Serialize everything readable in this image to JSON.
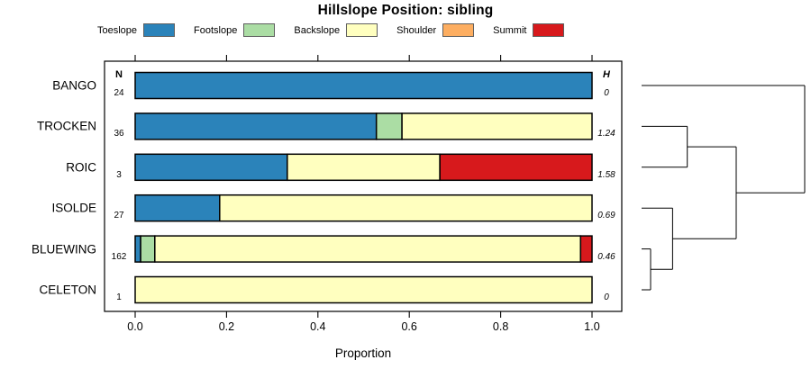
{
  "title": "Hillslope Position: sibling",
  "x_axis": {
    "label": "Proportion",
    "tick_labels": [
      "0.0",
      "0.2",
      "0.4",
      "0.6",
      "0.8",
      "1.0"
    ],
    "tick_values": [
      0,
      0.2,
      0.4,
      0.6,
      0.8,
      1.0
    ],
    "range": [
      0,
      1
    ]
  },
  "columns": {
    "n_header": "N",
    "h_header": "H"
  },
  "legend": [
    {
      "label": "Toeslope",
      "color": "#2B83BA"
    },
    {
      "label": "Footslope",
      "color": "#ABDDA4"
    },
    {
      "label": "Backslope",
      "color": "#FFFFBF"
    },
    {
      "label": "Shoulder",
      "color": "#FDAE61"
    },
    {
      "label": "Summit",
      "color": "#D7191C"
    }
  ],
  "chart_data": {
    "type": "bar",
    "subtype": "horizontal-stacked-proportion",
    "title": "Hillslope Position: sibling",
    "xlabel": "Proportion",
    "xlim": [
      0,
      1
    ],
    "grid": false,
    "legend_position": "top",
    "categories": [
      "Toeslope",
      "Footslope",
      "Backslope",
      "Shoulder",
      "Summit"
    ],
    "category_colors": {
      "Toeslope": "#2B83BA",
      "Footslope": "#ABDDA4",
      "Backslope": "#FFFFBF",
      "Shoulder": "#FDAE61",
      "Summit": "#D7191C"
    },
    "rows": [
      {
        "name": "BANGO",
        "n": "24",
        "h": "0",
        "segments": [
          {
            "category": "Toeslope",
            "value": 1.0
          }
        ]
      },
      {
        "name": "TROCKEN",
        "n": "36",
        "h": "1.24",
        "segments": [
          {
            "category": "Toeslope",
            "value": 0.528
          },
          {
            "category": "Footslope",
            "value": 0.056
          },
          {
            "category": "Backslope",
            "value": 0.416
          }
        ]
      },
      {
        "name": "ROIC",
        "n": "3",
        "h": "1.58",
        "segments": [
          {
            "category": "Toeslope",
            "value": 0.333
          },
          {
            "category": "Backslope",
            "value": 0.334
          },
          {
            "category": "Summit",
            "value": 0.333
          }
        ]
      },
      {
        "name": "ISOLDE",
        "n": "27",
        "h": "0.69",
        "segments": [
          {
            "category": "Toeslope",
            "value": 0.185
          },
          {
            "category": "Backslope",
            "value": 0.815
          }
        ]
      },
      {
        "name": "BLUEWING",
        "n": "162",
        "h": "0.46",
        "segments": [
          {
            "category": "Toeslope",
            "value": 0.012
          },
          {
            "category": "Footslope",
            "value": 0.031
          },
          {
            "category": "Backslope",
            "value": 0.932
          },
          {
            "category": "Summit",
            "value": 0.025
          }
        ]
      },
      {
        "name": "CELETON",
        "n": "1",
        "h": "0",
        "segments": [
          {
            "category": "Backslope",
            "value": 1.0
          }
        ]
      }
    ],
    "dendrogram": {
      "orientation": "right",
      "leaves": [
        "BANGO",
        "TROCKEN",
        "ROIC",
        "ISOLDE",
        "BLUEWING",
        "CELETON"
      ],
      "merges": [
        {
          "id": "m1",
          "children": [
            "BLUEWING",
            "CELETON"
          ],
          "height": 0.055
        },
        {
          "id": "m2",
          "children": [
            "ISOLDE",
            "m1"
          ],
          "height": 0.19
        },
        {
          "id": "m3",
          "children": [
            "TROCKEN",
            "ROIC"
          ],
          "height": 0.28
        },
        {
          "id": "m4",
          "children": [
            "m3",
            "m2"
          ],
          "height": 0.58
        },
        {
          "id": "m5",
          "children": [
            "BANGO",
            "m4"
          ],
          "height": 1.0
        }
      ]
    }
  }
}
